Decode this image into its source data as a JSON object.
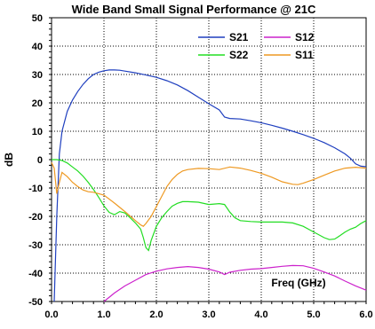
{
  "chart_data": {
    "type": "line",
    "title": "Wide Band Small Signal Performance @ 21C",
    "xlabel": "Freq (GHz)",
    "ylabel": "dB",
    "xlim": [
      0,
      6
    ],
    "ylim": [
      -50,
      50
    ],
    "x_ticks": [
      "0.0",
      "1.0",
      "2.0",
      "3.0",
      "4.0",
      "5.0",
      "6.0"
    ],
    "y_ticks": [
      "50",
      "40",
      "30",
      "20",
      "10",
      "0",
      "-10",
      "-20",
      "-30",
      "-40",
      "-50"
    ],
    "grid": true,
    "legend": "top-right",
    "series": [
      {
        "name": "S21",
        "color": "#1f3fbf",
        "points": [
          [
            0.05,
            -50
          ],
          [
            0.1,
            -20
          ],
          [
            0.15,
            2
          ],
          [
            0.2,
            10
          ],
          [
            0.3,
            17
          ],
          [
            0.4,
            21
          ],
          [
            0.5,
            24
          ],
          [
            0.6,
            26.5
          ],
          [
            0.7,
            28.5
          ],
          [
            0.8,
            30
          ],
          [
            0.9,
            30.8
          ],
          [
            1.0,
            31.3
          ],
          [
            1.1,
            31.6
          ],
          [
            1.2,
            31.6
          ],
          [
            1.3,
            31.5
          ],
          [
            1.4,
            31.2
          ],
          [
            1.6,
            30.6
          ],
          [
            1.8,
            29.8
          ],
          [
            2.0,
            29
          ],
          [
            2.2,
            27.8
          ],
          [
            2.4,
            26.3
          ],
          [
            2.6,
            24.3
          ],
          [
            2.8,
            22
          ],
          [
            3.0,
            19.7
          ],
          [
            3.2,
            17.5
          ],
          [
            3.3,
            15
          ],
          [
            3.4,
            14.5
          ],
          [
            3.6,
            14.3
          ],
          [
            3.8,
            13.7
          ],
          [
            4.0,
            13
          ],
          [
            4.2,
            12.1
          ],
          [
            4.4,
            11.1
          ],
          [
            4.6,
            10
          ],
          [
            4.8,
            8.8
          ],
          [
            5.0,
            7.5
          ],
          [
            5.2,
            6
          ],
          [
            5.4,
            4.2
          ],
          [
            5.6,
            2
          ],
          [
            5.7,
            0.5
          ],
          [
            5.8,
            -1.5
          ],
          [
            5.9,
            -2.3
          ],
          [
            6.0,
            -2.5
          ]
        ]
      },
      {
        "name": "S12",
        "color": "#cc22cc",
        "points": [
          [
            1.0,
            -50
          ],
          [
            1.2,
            -47
          ],
          [
            1.4,
            -44.5
          ],
          [
            1.6,
            -42.5
          ],
          [
            1.8,
            -40.5
          ],
          [
            2.0,
            -39.3
          ],
          [
            2.2,
            -38.5
          ],
          [
            2.4,
            -38
          ],
          [
            2.6,
            -37.7
          ],
          [
            2.8,
            -38
          ],
          [
            3.0,
            -38.6
          ],
          [
            3.2,
            -39.6
          ],
          [
            3.3,
            -40.5
          ],
          [
            3.4,
            -39.7
          ],
          [
            3.6,
            -39
          ],
          [
            3.8,
            -38.6
          ],
          [
            4.0,
            -38.4
          ],
          [
            4.2,
            -38
          ],
          [
            4.4,
            -37.6
          ],
          [
            4.6,
            -37.3
          ],
          [
            4.8,
            -37.4
          ],
          [
            5.0,
            -38.3
          ],
          [
            5.2,
            -39.6
          ],
          [
            5.4,
            -41
          ],
          [
            5.6,
            -42.8
          ],
          [
            5.8,
            -44.5
          ],
          [
            6.0,
            -46
          ]
        ]
      },
      {
        "name": "S22",
        "color": "#22dd22",
        "points": [
          [
            0.0,
            0
          ],
          [
            0.1,
            0
          ],
          [
            0.2,
            -0.3
          ],
          [
            0.3,
            -1.2
          ],
          [
            0.4,
            -2.6
          ],
          [
            0.5,
            -4
          ],
          [
            0.6,
            -5.8
          ],
          [
            0.7,
            -8
          ],
          [
            0.8,
            -10.5
          ],
          [
            0.9,
            -13.3
          ],
          [
            1.0,
            -16.3
          ],
          [
            1.1,
            -18.6
          ],
          [
            1.2,
            -19.4
          ],
          [
            1.3,
            -18.3
          ],
          [
            1.4,
            -18.8
          ],
          [
            1.5,
            -20.5
          ],
          [
            1.6,
            -22.3
          ],
          [
            1.7,
            -24.5
          ],
          [
            1.75,
            -27.5
          ],
          [
            1.8,
            -31
          ],
          [
            1.85,
            -32
          ],
          [
            1.9,
            -28.5
          ],
          [
            2.0,
            -23.5
          ],
          [
            2.1,
            -20.5
          ],
          [
            2.2,
            -18.3
          ],
          [
            2.3,
            -16.4
          ],
          [
            2.4,
            -15.4
          ],
          [
            2.5,
            -14.8
          ],
          [
            2.6,
            -14.8
          ],
          [
            2.8,
            -15
          ],
          [
            3.0,
            -15.8
          ],
          [
            3.2,
            -15.5
          ],
          [
            3.3,
            -15.8
          ],
          [
            3.4,
            -18.5
          ],
          [
            3.5,
            -20.5
          ],
          [
            3.6,
            -21.5
          ],
          [
            3.8,
            -21.8
          ],
          [
            4.0,
            -22
          ],
          [
            4.2,
            -22
          ],
          [
            4.4,
            -22
          ],
          [
            4.6,
            -22.3
          ],
          [
            4.8,
            -23.5
          ],
          [
            5.0,
            -25.5
          ],
          [
            5.2,
            -27.5
          ],
          [
            5.3,
            -28.2
          ],
          [
            5.4,
            -28
          ],
          [
            5.5,
            -26.8
          ],
          [
            5.6,
            -25.5
          ],
          [
            5.7,
            -24.5
          ],
          [
            5.8,
            -23.8
          ],
          [
            5.9,
            -22.5
          ],
          [
            6.0,
            -21.5
          ]
        ]
      },
      {
        "name": "S11",
        "color": "#ee9922",
        "points": [
          [
            0.0,
            -1
          ],
          [
            0.05,
            -3
          ],
          [
            0.1,
            -12
          ],
          [
            0.15,
            -8
          ],
          [
            0.2,
            -4.5
          ],
          [
            0.3,
            -6
          ],
          [
            0.4,
            -8
          ],
          [
            0.5,
            -9.5
          ],
          [
            0.6,
            -10.7
          ],
          [
            0.7,
            -11.3
          ],
          [
            0.8,
            -11.5
          ],
          [
            1.0,
            -12.5
          ],
          [
            1.2,
            -15.3
          ],
          [
            1.4,
            -18.3
          ],
          [
            1.6,
            -21.5
          ],
          [
            1.7,
            -23
          ],
          [
            1.75,
            -23.5
          ],
          [
            1.8,
            -22.5
          ],
          [
            1.9,
            -20
          ],
          [
            2.0,
            -16.5
          ],
          [
            2.1,
            -13
          ],
          [
            2.2,
            -9.5
          ],
          [
            2.3,
            -7
          ],
          [
            2.4,
            -5.2
          ],
          [
            2.5,
            -4
          ],
          [
            2.6,
            -3.5
          ],
          [
            2.8,
            -3.1
          ],
          [
            3.0,
            -3.2
          ],
          [
            3.2,
            -3.5
          ],
          [
            3.4,
            -2.6
          ],
          [
            3.6,
            -3
          ],
          [
            3.8,
            -3.8
          ],
          [
            4.0,
            -4.8
          ],
          [
            4.2,
            -6.2
          ],
          [
            4.4,
            -7.8
          ],
          [
            4.6,
            -8.7
          ],
          [
            4.7,
            -8.8
          ],
          [
            4.8,
            -8.3
          ],
          [
            5.0,
            -7
          ],
          [
            5.2,
            -5.5
          ],
          [
            5.4,
            -4
          ],
          [
            5.6,
            -3
          ],
          [
            5.8,
            -2.7
          ],
          [
            6.0,
            -3
          ]
        ]
      }
    ]
  }
}
